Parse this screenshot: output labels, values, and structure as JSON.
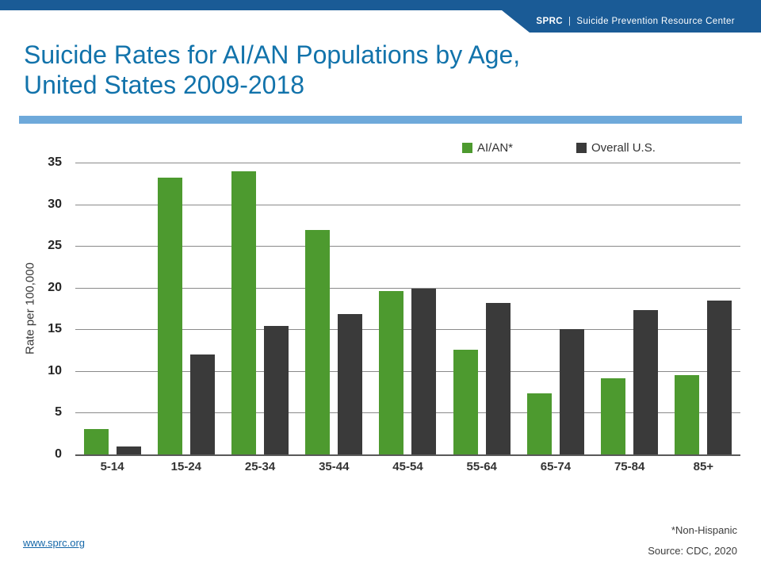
{
  "brand": {
    "name": "SPRC",
    "separator": "|",
    "tagline": "Suicide Prevention Resource Center"
  },
  "title": {
    "line1": "Suicide Rates for AI/AN Populations by Age,",
    "line2": "United States 2009-2018"
  },
  "footer": {
    "link": "www.sprc.org",
    "footnote": "*Non-Hispanic",
    "source": "Source: CDC, 2020"
  },
  "colors": {
    "header_blue": "#1a5b96",
    "title_blue": "#1273ab",
    "divider_blue": "#6ea9da",
    "aian_green": "#4d9a2f",
    "overall_us_dark": "#3a3a3a"
  },
  "chart_data": {
    "type": "bar",
    "categories": [
      "5-14",
      "15-24",
      "25-34",
      "35-44",
      "45-54",
      "55-64",
      "65-74",
      "75-84",
      "85+"
    ],
    "series": [
      {
        "name": "AI/AN*",
        "color": "#4d9a2f",
        "values": [
          3.0,
          33.2,
          34.0,
          26.9,
          19.6,
          12.6,
          7.3,
          9.1,
          9.5
        ]
      },
      {
        "name": "Overall U.S.",
        "color": "#3a3a3a",
        "values": [
          1.0,
          12.0,
          15.4,
          16.8,
          19.9,
          18.2,
          15.0,
          17.3,
          18.5
        ]
      }
    ],
    "title": "",
    "xlabel": "",
    "ylabel": "Rate per 100,000",
    "ylim": [
      0,
      35
    ],
    "ytick_step": 5,
    "grid": true,
    "legend_position": "top-right"
  }
}
